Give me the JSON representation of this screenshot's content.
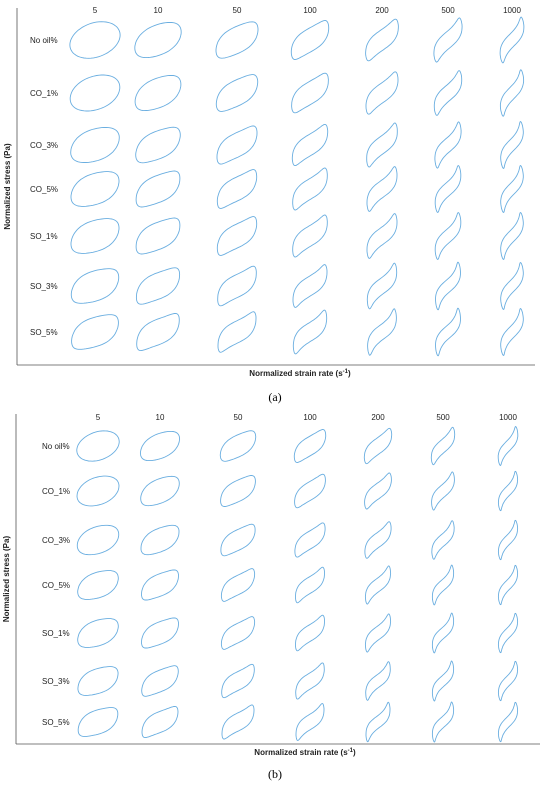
{
  "figure": {
    "panels": [
      {
        "label": "(a)",
        "ylabel": "Normalized stress (Pa)",
        "xlabel_main": "Normalized strain rate (s",
        "xlabel_sup": "-1",
        "xlabel_end": ")",
        "columns": [
          "5",
          "10",
          "50",
          "100",
          "200",
          "500",
          "1000"
        ],
        "rows": [
          "No oil%",
          "CO_1%",
          "CO_3%",
          "CO_5%",
          "SO_1%",
          "SO_3%",
          "SO_5%"
        ]
      },
      {
        "label": "(b)",
        "ylabel": "Normalized stress (Pa)",
        "xlabel_main": "Normalized strain rate (s",
        "xlabel_sup": "-1",
        "xlabel_end": ")",
        "columns": [
          "5",
          "10",
          "50",
          "100",
          "200",
          "500",
          "1000"
        ],
        "rows": [
          "No oil%",
          "CO_1%",
          "CO_3%",
          "CO_5%",
          "SO_1%",
          "SO_3%",
          "SO_5%"
        ]
      }
    ],
    "colors": {
      "loop": "#6aaee0",
      "axis": "#555555"
    }
  }
}
